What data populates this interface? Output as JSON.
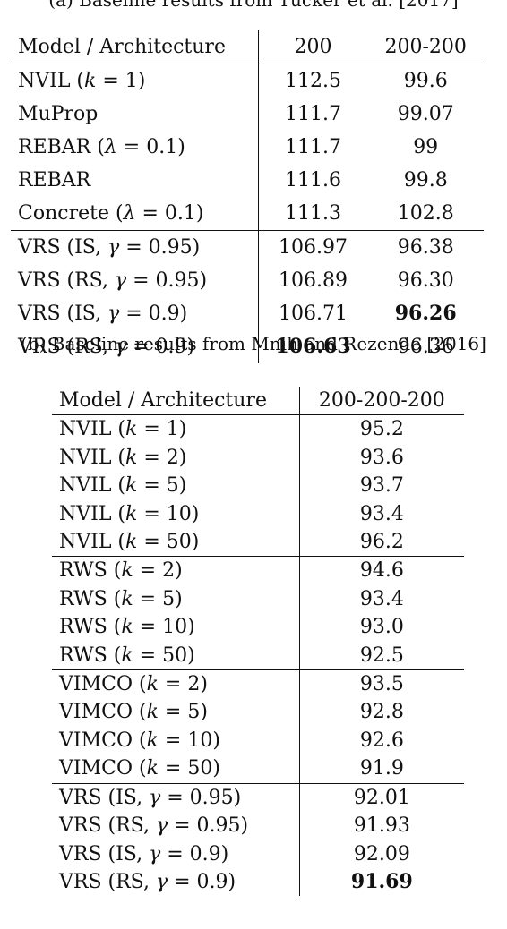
{
  "table_a": {
    "caption": "(a) Baseline results from Tucker et al. [2017]",
    "headers": [
      "Model / Architecture",
      "200",
      "200-200"
    ],
    "groups": [
      [
        {
          "model": "NVIL (k = 1)",
          "c1": "112.5",
          "c2": "99.6"
        },
        {
          "model": "MuProp",
          "c1": "111.7",
          "c2": "99.07"
        },
        {
          "model": "REBAR (λ = 0.1)",
          "c1": "111.7",
          "c2": "99"
        },
        {
          "model": "REBAR",
          "c1": "111.6",
          "c2": "99.8"
        },
        {
          "model": "Concrete (λ = 0.1)",
          "c1": "111.3",
          "c2": "102.8"
        }
      ],
      [
        {
          "model": "VRS (IS, γ = 0.95)",
          "c1": "106.97",
          "c2": "96.38"
        },
        {
          "model": "VRS (RS, γ = 0.95)",
          "c1": "106.89",
          "c2": "96.30"
        },
        {
          "model": "VRS (IS, γ = 0.9)",
          "c1": "106.71",
          "c2": "96.26"
        },
        {
          "model": "VRS (RS, γ = 0.9)",
          "c1": "106.63",
          "c2": "96.36"
        }
      ]
    ]
  },
  "table_b": {
    "caption": "(b) Baseline results from Mnih and Rezende [2016]",
    "headers": [
      "Model / Architecture",
      "200-200-200"
    ],
    "groups": [
      [
        {
          "model": "NVIL (k = 1)",
          "c1": "95.2"
        },
        {
          "model": "NVIL (k = 2)",
          "c1": "93.6"
        },
        {
          "model": "NVIL (k = 5)",
          "c1": "93.7"
        },
        {
          "model": "NVIL (k = 10)",
          "c1": "93.4"
        },
        {
          "model": "NVIL (k = 50)",
          "c1": "96.2"
        }
      ],
      [
        {
          "model": "RWS (k = 2)",
          "c1": "94.6"
        },
        {
          "model": "RWS (k = 5)",
          "c1": "93.4"
        },
        {
          "model": "RWS (k = 10)",
          "c1": "93.0"
        },
        {
          "model": "RWS (k = 50)",
          "c1": "92.5"
        }
      ],
      [
        {
          "model": "VIMCO (k = 2)",
          "c1": "93.5"
        },
        {
          "model": "VIMCO (k = 5)",
          "c1": "92.8"
        },
        {
          "model": "VIMCO (k = 10)",
          "c1": "92.6"
        },
        {
          "model": "VIMCO (k = 50)",
          "c1": "91.9"
        }
      ],
      [
        {
          "model": "VRS (IS, γ = 0.95)",
          "c1": "92.01"
        },
        {
          "model": "VRS (RS, γ = 0.95)",
          "c1": "91.93"
        },
        {
          "model": "VRS (IS, γ = 0.9)",
          "c1": "92.09"
        },
        {
          "model": "VRS (RS, γ = 0.9)",
          "c1": "91.69"
        }
      ]
    ]
  }
}
